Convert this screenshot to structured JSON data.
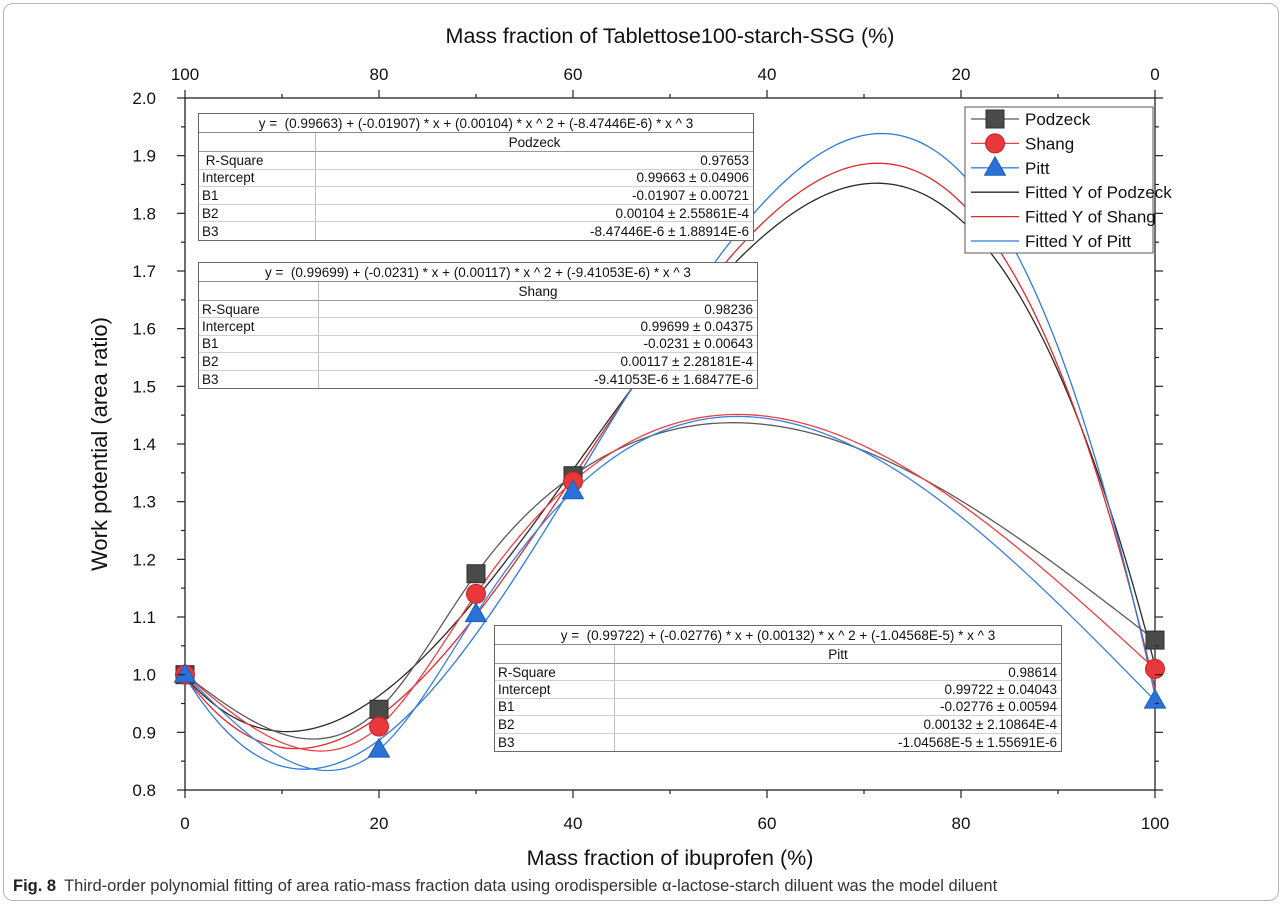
{
  "caption": {
    "label": "Fig. 8",
    "text": "Third-order polynomial fitting of area ratio-mass fraction data using orodispersible α-lactose-starch diluent was the model diluent"
  },
  "chart_data": {
    "type": "scatter",
    "xlabel": "Mass fraction of ibuprofen (%)",
    "ylabel": "Work potential (area ratio)",
    "x2label": "Mass fraction of Tablettose100-starch-SSG (%)",
    "xlim": [
      0,
      100
    ],
    "x2lim": [
      100,
      0
    ],
    "ylim": [
      0.8,
      2.0
    ],
    "x_ticks": [
      "0",
      "20",
      "40",
      "60",
      "80",
      "100"
    ],
    "x2_ticks": [
      "100",
      "80",
      "60",
      "40",
      "20",
      "0"
    ],
    "y_ticks": [
      "0.8",
      "0.9",
      "1.0",
      "1.1",
      "1.2",
      "1.3",
      "1.4",
      "1.5",
      "1.6",
      "1.7",
      "1.8",
      "1.9",
      "2.0"
    ],
    "grid": false,
    "legend_position": "top-right",
    "x": [
      0,
      20,
      30,
      40,
      100
    ],
    "series": [
      {
        "name": "Podzeck",
        "values": [
          1.0,
          0.94,
          1.175,
          1.345,
          1.06
        ],
        "marker": "square",
        "color": "#4a4a4a",
        "line_color": "#5a5a5a"
      },
      {
        "name": "Shang",
        "values": [
          1.0,
          0.91,
          1.14,
          1.335,
          1.01
        ],
        "marker": "circle",
        "color": "#e8383b",
        "line_color": "#ec4043"
      },
      {
        "name": "Pitt",
        "values": [
          1.0,
          0.87,
          1.105,
          1.318,
          0.955
        ],
        "marker": "triangle",
        "color": "#2a72d8",
        "line_color": "#3a80de"
      }
    ],
    "fits": [
      {
        "name": "Fitted Y of Podzeck",
        "series": "Podzeck",
        "coefficients": [
          0.99663,
          -0.01907,
          0.00104,
          -8.47446e-06
        ],
        "color": "#2a2a2a"
      },
      {
        "name": "Fitted Y of Shang",
        "series": "Shang",
        "coefficients": [
          0.99699,
          -0.0231,
          0.00117,
          -9.41053e-06
        ],
        "color": "#e02a2a"
      },
      {
        "name": "Fitted Y of Pitt",
        "series": "Pitt",
        "coefficients": [
          0.99722,
          -0.02776,
          0.00132,
          -1.04568e-05
        ],
        "color": "#2f7ad9"
      }
    ]
  },
  "tables": [
    {
      "equation": "y =  (0.99663) + (-0.01907) * x + (0.00104) * x ^ 2 + (-8.47446E-6) * x ^ 3",
      "title": "Podzeck",
      "rows": [
        {
          "label": " R-Square",
          "value": "0.97653"
        },
        {
          "label": "Intercept",
          "value": "0.99663 ± 0.04906"
        },
        {
          "label": "B1",
          "value": "-0.01907 ± 0.00721"
        },
        {
          "label": "B2",
          "value": "0.00104 ± 2.55861E-4"
        },
        {
          "label": "B3",
          "value": "-8.47446E-6 ± 1.88914E-6"
        }
      ]
    },
    {
      "equation": "y =  (0.99699) + (-0.0231) * x + (0.00117) * x ^ 2 + (-9.41053E-6) * x ^ 3",
      "title": "Shang",
      "rows": [
        {
          "label": "R-Square",
          "value": "0.98236"
        },
        {
          "label": "Intercept",
          "value": "0.99699 ± 0.04375"
        },
        {
          "label": "B1",
          "value": "-0.0231 ± 0.00643"
        },
        {
          "label": "B2",
          "value": "0.00117 ± 2.28181E-4"
        },
        {
          "label": "B3",
          "value": "-9.41053E-6 ± 1.68477E-6"
        }
      ]
    },
    {
      "equation": "y =  (0.99722) + (-0.02776) * x + (0.00132) * x ^ 2 + (-1.04568E-5) * x ^ 3",
      "title": "Pitt",
      "rows": [
        {
          "label": "R-Square",
          "value": "0.98614"
        },
        {
          "label": "Intercept",
          "value": "0.99722 ± 0.04043"
        },
        {
          "label": "B1",
          "value": "-0.02776 ± 0.00594"
        },
        {
          "label": "B2",
          "value": "0.00132 ± 2.10864E-4"
        },
        {
          "label": "B3",
          "value": "-1.04568E-5 ± 1.55691E-6"
        }
      ]
    }
  ]
}
